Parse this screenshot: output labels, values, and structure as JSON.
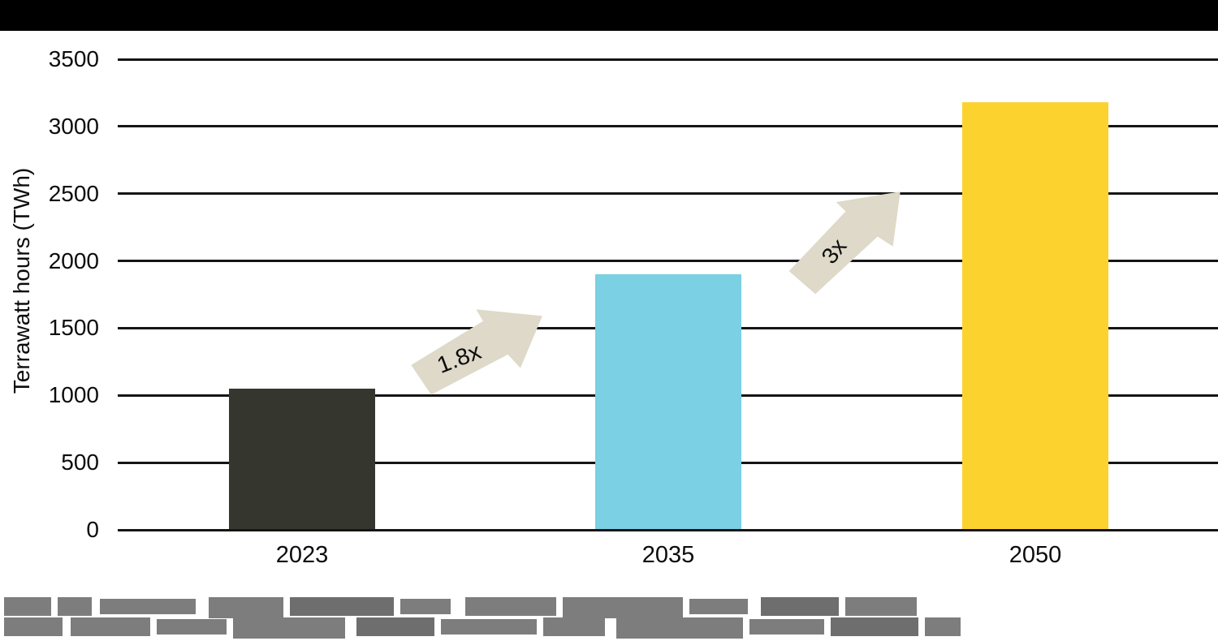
{
  "chart_data": {
    "type": "bar",
    "title": "",
    "xlabel": "",
    "ylabel": "Terrawatt hours (TWh)",
    "categories": [
      "2023",
      "2035",
      "2050"
    ],
    "values": [
      1050,
      1900,
      3180
    ],
    "bar_colors": [
      "#35372e",
      "#7bd0e3",
      "#fcd32e"
    ],
    "ylim": [
      0,
      3500
    ],
    "yticks": [
      {
        "value": 0,
        "label": "0"
      },
      {
        "value": 500,
        "label": "500"
      },
      {
        "value": 1000,
        "label": "1000"
      },
      {
        "value": 1500,
        "label": "1500"
      },
      {
        "value": 2000,
        "label": "2000"
      },
      {
        "value": 2500,
        "label": "2500"
      },
      {
        "value": 3000,
        "label": "3000"
      },
      {
        "value": 3500,
        "label": "3500"
      }
    ],
    "grid": true,
    "legend": false,
    "annotations": [
      {
        "label": "1.8x",
        "from": "2023",
        "to": "2035"
      },
      {
        "label": "3x",
        "from": "2035",
        "to": "2050"
      }
    ],
    "arrow_color": "#ded9c8"
  },
  "header": {
    "banner_color": "#000000"
  },
  "footer": {
    "legible": false,
    "block_color": "#7d7d7d",
    "line1_segments": [
      [
        58,
        8
      ],
      [
        42,
        10
      ],
      [
        118,
        16
      ],
      [
        92,
        8
      ],
      [
        128,
        8
      ],
      [
        62,
        18
      ],
      [
        112,
        8
      ],
      [
        148,
        8
      ],
      [
        72,
        16
      ],
      [
        96,
        8
      ],
      [
        88,
        0
      ]
    ],
    "line2_segments": [
      [
        72,
        10
      ],
      [
        98,
        8
      ],
      [
        86,
        8
      ],
      [
        138,
        14
      ],
      [
        96,
        8
      ],
      [
        118,
        8
      ],
      [
        76,
        14
      ],
      [
        156,
        8
      ],
      [
        92,
        8
      ],
      [
        108,
        8
      ],
      [
        44,
        0
      ]
    ]
  }
}
